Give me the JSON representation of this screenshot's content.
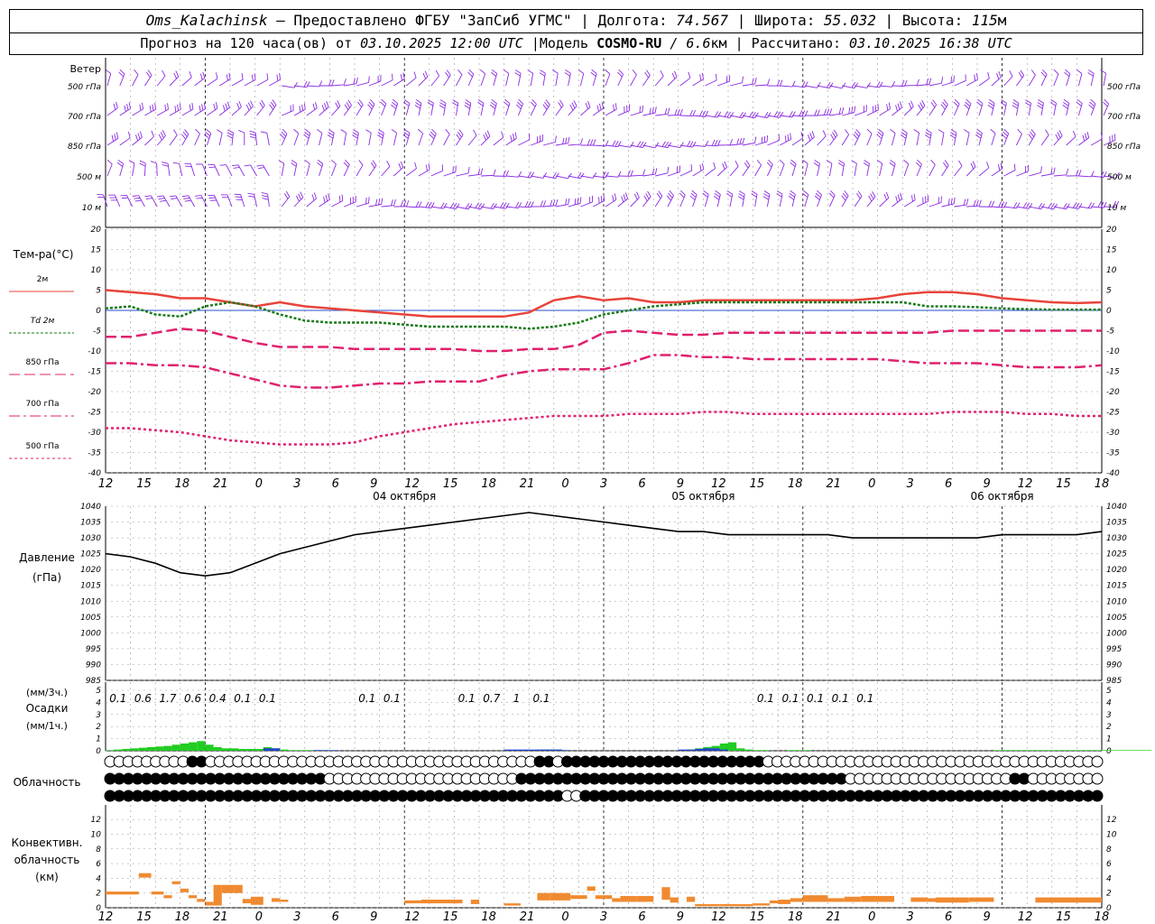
{
  "header": {
    "station": "Oms_Kalachinsk",
    "dash": "–",
    "provider": "Предоставлено ФГБУ \"ЗапСиб УГМС\"",
    "lon_label": "Долгота:",
    "lon_value": "74.567",
    "lat_label": "Широта:",
    "lat_value": "55.032",
    "alt_label": "Высота:",
    "alt_value": "115",
    "alt_unit": "м",
    "forecast_label": "Прогноз на 120 часа(ов) от",
    "forecast_from": "03.10.2025 12:00 UTC",
    "model_label": "Модель",
    "model_name": "COSMO-RU",
    "model_res": "/ 6.6",
    "model_res_unit": "км",
    "calc_label": "Рассчитано:",
    "calc_value": "03.10.2025 16:38 UTC",
    "sep": "|"
  },
  "labels": {
    "wind": "Ветер",
    "wind_levels": [
      "500 гПа",
      "700 гПа",
      "850 гПа",
      "500 м",
      "10  м"
    ],
    "temp_title": "Тем-ра(°C)",
    "temp_series_labels": [
      "2м",
      "Td  2м",
      "850 гПа",
      "700 гПа",
      "500 гПа"
    ],
    "pressure_title": "Давление",
    "pressure_unit": "(гПа)",
    "precip_unit_top": "(мм/3ч.)",
    "precip_title": "Осадки",
    "precip_unit_bottom": "(мм/1ч.)",
    "cloud_title": "Облачность",
    "conv_title_1": "Конвективн.",
    "conv_title_2": "облачность",
    "conv_unit": "(км)",
    "dates": [
      "04 октября",
      "05 октября",
      "06 октября"
    ],
    "hour_ticks": [
      "12",
      "15",
      "18",
      "21",
      "0",
      "3",
      "6",
      "9",
      "12",
      "15",
      "18",
      "21",
      "0",
      "3",
      "6",
      "9",
      "12",
      "15",
      "18",
      "21",
      "0",
      "3",
      "6",
      "9",
      "12",
      "15",
      "18"
    ]
  },
  "colors": {
    "temp_2m": "#e8433a",
    "td_2m": "#1a7a1a",
    "t850": "#e0206e",
    "t700": "#e0206e",
    "t500": "#e0206e",
    "wind": "#8a2be2",
    "pressure": "#000000",
    "precip_rain": "#22cc22",
    "precip_snow": "#2244cc",
    "conv": "#f08a30",
    "zero_line": "#2a4fd0"
  },
  "chart_data": [
    {
      "type": "line",
      "panel": "temperature",
      "x": [
        0,
        3,
        6,
        9,
        12,
        15,
        18,
        21,
        24,
        27,
        30,
        33,
        36,
        39,
        42,
        45,
        48,
        51,
        54,
        57,
        60,
        63,
        66,
        69,
        72,
        75,
        78,
        81,
        84,
        87,
        90,
        93,
        96,
        99,
        102,
        105,
        108,
        111,
        114,
        117,
        120
      ],
      "ylim": [
        -40,
        20
      ],
      "yticks": [
        20,
        15,
        10,
        5,
        0,
        -5,
        -10,
        -15,
        -20,
        -25,
        -30,
        -35,
        -40
      ],
      "series": [
        {
          "name": "2м",
          "values": [
            5,
            4.5,
            4,
            3,
            3,
            2,
            1,
            2,
            1,
            0.5,
            0,
            -0.5,
            -1,
            -1.5,
            -1.5,
            -1.5,
            -1.5,
            -0.5,
            2.5,
            3.5,
            2.5,
            3,
            2,
            2,
            2.5,
            2.5,
            2.5,
            2.5,
            2.5,
            2.5,
            2.5,
            3,
            4,
            4.5,
            4.5,
            4,
            3,
            2.5,
            2,
            1.8,
            2
          ]
        },
        {
          "name": "Td  2м",
          "values": [
            0.5,
            1,
            -1,
            -1.5,
            1,
            2,
            1,
            -1,
            -2.5,
            -3,
            -3,
            -3,
            -3.5,
            -4,
            -4,
            -4,
            -4,
            -4.5,
            -4,
            -3,
            -1,
            0,
            1,
            1.5,
            2,
            2,
            2,
            2,
            2,
            2,
            2,
            2,
            2,
            1,
            1,
            0.8,
            0.5,
            0.3,
            0.2,
            0.2,
            0.2
          ]
        },
        {
          "name": "850 гПа",
          "values": [
            -6.5,
            -6.5,
            -5.5,
            -4.5,
            -5,
            -6.5,
            -8,
            -9,
            -9,
            -9,
            -9.5,
            -9.5,
            -9.5,
            -9.5,
            -9.5,
            -10,
            -10,
            -9.5,
            -9.5,
            -8.5,
            -5.5,
            -5,
            -5.5,
            -6,
            -6,
            -5.5,
            -5.5,
            -5.5,
            -5.5,
            -5.5,
            -5.5,
            -5.5,
            -5.5,
            -5.5,
            -5,
            -5,
            -5,
            -5,
            -5,
            -5,
            -5
          ]
        },
        {
          "name": "700 гПа",
          "values": [
            -13,
            -13,
            -13.5,
            -13.5,
            -14,
            -15.5,
            -17,
            -18.5,
            -19,
            -19,
            -18.5,
            -18,
            -18,
            -17.5,
            -17.5,
            -17.5,
            -16,
            -15,
            -14.5,
            -14.5,
            -14.5,
            -13,
            -11,
            -11,
            -11.5,
            -11.5,
            -12,
            -12,
            -12,
            -12,
            -12,
            -12,
            -12.5,
            -13,
            -13,
            -13,
            -13.5,
            -14,
            -14,
            -14,
            -13.5
          ]
        },
        {
          "name": "500 гПа",
          "values": [
            -29,
            -29,
            -29.5,
            -30,
            -31,
            -32,
            -32.5,
            -33,
            -33,
            -33,
            -32.5,
            -31,
            -30,
            -29,
            -28,
            -27.5,
            -27,
            -26.5,
            -26,
            -26,
            -26,
            -25.5,
            -25.5,
            -25.5,
            -25,
            -25,
            -25.5,
            -25.5,
            -25.5,
            -25.5,
            -25.5,
            -25.5,
            -25.5,
            -25.5,
            -25,
            -25,
            -25,
            -25.5,
            -25.5,
            -26,
            -26
          ]
        }
      ]
    },
    {
      "type": "line",
      "panel": "pressure",
      "x": [
        0,
        3,
        6,
        9,
        12,
        15,
        18,
        21,
        24,
        27,
        30,
        33,
        36,
        39,
        42,
        45,
        48,
        51,
        54,
        57,
        60,
        63,
        66,
        69,
        72,
        75,
        78,
        81,
        84,
        87,
        90,
        93,
        96,
        99,
        102,
        105,
        108,
        111,
        114,
        117,
        120
      ],
      "ylim": [
        985,
        1040
      ],
      "yticks": [
        1040,
        1035,
        1030,
        1025,
        1020,
        1015,
        1010,
        1005,
        1000,
        995,
        990,
        985
      ],
      "series": [
        {
          "name": "Давление",
          "values": [
            1025,
            1024,
            1022,
            1019,
            1018,
            1019,
            1022,
            1025,
            1027,
            1029,
            1031,
            1032,
            1033,
            1034,
            1035,
            1036,
            1037,
            1038,
            1037,
            1036,
            1035,
            1034,
            1033,
            1032,
            1032,
            1031,
            1031,
            1031,
            1031,
            1031,
            1030,
            1030,
            1030,
            1030,
            1030,
            1030,
            1031,
            1031,
            1031,
            1031,
            1032
          ]
        }
      ]
    },
    {
      "type": "bar",
      "panel": "precipitation",
      "ylim": [
        0,
        5
      ],
      "yticks": [
        5,
        4,
        3,
        2,
        1,
        0
      ],
      "labels_3h": [
        {
          "x": 1.5,
          "text": "0.1"
        },
        {
          "x": 4.5,
          "text": "0.6"
        },
        {
          "x": 7.5,
          "text": "1.7"
        },
        {
          "x": 10.5,
          "text": "0.6"
        },
        {
          "x": 13.5,
          "text": "0.4"
        },
        {
          "x": 16.5,
          "text": "0.1"
        },
        {
          "x": 19.5,
          "text": "0.1"
        },
        {
          "x": 31.5,
          "text": "0.1"
        },
        {
          "x": 34.5,
          "text": "0.1"
        },
        {
          "x": 43.5,
          "text": "0.1"
        },
        {
          "x": 46.5,
          "text": "0.7"
        },
        {
          "x": 49.5,
          "text": "1"
        },
        {
          "x": 52.5,
          "text": "0.1"
        },
        {
          "x": 79.5,
          "text": "0.1"
        },
        {
          "x": 82.5,
          "text": "0.1"
        },
        {
          "x": 85.5,
          "text": "0.1"
        },
        {
          "x": 88.5,
          "text": "0.1"
        },
        {
          "x": 91.5,
          "text": "0.1"
        }
      ],
      "rain_1h": [
        0.05,
        0.1,
        0.15,
        0.2,
        0.25,
        0.3,
        0.35,
        0.4,
        0.5,
        0.6,
        0.7,
        0.8,
        0.5,
        0.3,
        0.2,
        0.2,
        0.15,
        0.15,
        0.15,
        0.3,
        0.2,
        0.1,
        0.05,
        0.05,
        0.05,
        0.05,
        0.05,
        0,
        0,
        0,
        0,
        0,
        0,
        0,
        0,
        0,
        0,
        0,
        0,
        0,
        0,
        0,
        0,
        0,
        0,
        0,
        0,
        0,
        0,
        0,
        0.05,
        0.05,
        0.1,
        0.1,
        0.1,
        0.05,
        0,
        0,
        0,
        0,
        0,
        0,
        0,
        0,
        0,
        0,
        0,
        0,
        0,
        0.05,
        0.1,
        0.2,
        0.3,
        0.4,
        0.6,
        0.7,
        0.2,
        0.1,
        0.05,
        0.05,
        0,
        0,
        0.05,
        0.05,
        0.05,
        0,
        0,
        0,
        0,
        0,
        0,
        0,
        0,
        0,
        0,
        0,
        0,
        0,
        0,
        0,
        0,
        0,
        0,
        0,
        0,
        0,
        0,
        0.05,
        0.05,
        0.05,
        0.05,
        0.05,
        0.05,
        0.05,
        0.05,
        0.05,
        0.05,
        0.05,
        0.05,
        0.05,
        0.05,
        0.05,
        0.05,
        0.05,
        0.05,
        0.05
      ],
      "snow_1h": [
        0,
        0,
        0,
        0,
        0,
        0,
        0,
        0,
        0,
        0,
        0,
        0,
        0,
        0,
        0,
        0,
        0,
        0,
        0,
        0.2,
        0.2,
        0,
        0,
        0,
        0,
        0.05,
        0.05,
        0.05,
        0,
        0,
        0,
        0,
        0,
        0,
        0,
        0,
        0,
        0,
        0,
        0,
        0,
        0,
        0,
        0,
        0,
        0,
        0,
        0,
        0.1,
        0.1,
        0.1,
        0.1,
        0.1,
        0.1,
        0.1,
        0.05,
        0,
        0,
        0,
        0,
        0,
        0,
        0,
        0,
        0,
        0,
        0,
        0,
        0,
        0.1,
        0.1,
        0.15,
        0.2,
        0.2,
        0.1,
        0,
        0,
        0,
        0,
        0,
        0,
        0,
        0,
        0,
        0,
        0,
        0,
        0,
        0,
        0,
        0,
        0,
        0,
        0,
        0,
        0,
        0,
        0,
        0,
        0,
        0,
        0,
        0,
        0,
        0,
        0,
        0,
        0,
        0,
        0,
        0,
        0,
        0,
        0,
        0,
        0,
        0,
        0,
        0,
        0,
        0,
        0
      ]
    },
    {
      "type": "bar",
      "panel": "convective_cloud",
      "ylim": [
        0,
        13
      ],
      "yticks": [
        12,
        10,
        8,
        6,
        4,
        2,
        0
      ],
      "bars": [
        {
          "x0": 0,
          "x1": 4,
          "bottom": 1.8,
          "top": 2.2
        },
        {
          "x0": 4,
          "x1": 5.5,
          "bottom": 4.1,
          "top": 4.7
        },
        {
          "x0": 5.5,
          "x1": 7,
          "bottom": 1.8,
          "top": 2.2
        },
        {
          "x0": 7,
          "x1": 8,
          "bottom": 1.3,
          "top": 1.7
        },
        {
          "x0": 8,
          "x1": 9,
          "bottom": 3.2,
          "top": 3.6
        },
        {
          "x0": 9,
          "x1": 10,
          "bottom": 2.1,
          "top": 2.6
        },
        {
          "x0": 10,
          "x1": 11,
          "bottom": 1.3,
          "top": 1.7
        },
        {
          "x0": 11,
          "x1": 12,
          "bottom": 0.8,
          "top": 1.2
        },
        {
          "x0": 12,
          "x1": 13,
          "bottom": 0.3,
          "top": 0.8
        },
        {
          "x0": 13,
          "x1": 14,
          "bottom": 0.3,
          "top": 3.1
        },
        {
          "x0": 14,
          "x1": 15.5,
          "bottom": 2,
          "top": 3.1
        },
        {
          "x0": 15.5,
          "x1": 16.5,
          "bottom": 2,
          "top": 3.1
        },
        {
          "x0": 16.5,
          "x1": 17.5,
          "bottom": 0.6,
          "top": 1.2
        },
        {
          "x0": 17.5,
          "x1": 19,
          "bottom": 0.4,
          "top": 1.5
        },
        {
          "x0": 20,
          "x1": 21,
          "bottom": 0.8,
          "top": 1.3
        },
        {
          "x0": 21,
          "x1": 22,
          "bottom": 0.8,
          "top": 1.1
        },
        {
          "x0": 36,
          "x1": 38,
          "bottom": 0.6,
          "top": 1
        },
        {
          "x0": 38,
          "x1": 43,
          "bottom": 0.6,
          "top": 1.1
        },
        {
          "x0": 44,
          "x1": 45,
          "bottom": 0.5,
          "top": 1.1
        },
        {
          "x0": 48,
          "x1": 50,
          "bottom": 0.3,
          "top": 0.6
        },
        {
          "x0": 52,
          "x1": 53.5,
          "bottom": 1,
          "top": 2
        },
        {
          "x0": 53.5,
          "x1": 56,
          "bottom": 1,
          "top": 2
        },
        {
          "x0": 56,
          "x1": 58,
          "bottom": 1.2,
          "top": 1.7
        },
        {
          "x0": 58,
          "x1": 59,
          "bottom": 2.3,
          "top": 2.9
        },
        {
          "x0": 59,
          "x1": 61,
          "bottom": 1.2,
          "top": 1.7
        },
        {
          "x0": 61,
          "x1": 62,
          "bottom": 0.8,
          "top": 1.3
        },
        {
          "x0": 62,
          "x1": 64,
          "bottom": 0.8,
          "top": 1.6
        },
        {
          "x0": 64,
          "x1": 66,
          "bottom": 0.8,
          "top": 1.6
        },
        {
          "x0": 67,
          "x1": 68,
          "bottom": 1.1,
          "top": 2.8
        },
        {
          "x0": 68,
          "x1": 69,
          "bottom": 0.7,
          "top": 1.4
        },
        {
          "x0": 70,
          "x1": 71,
          "bottom": 0.8,
          "top": 1.5
        },
        {
          "x0": 71,
          "x1": 74,
          "bottom": 0.2,
          "top": 0.5
        },
        {
          "x0": 74,
          "x1": 78,
          "bottom": 0.2,
          "top": 0.5
        },
        {
          "x0": 78,
          "x1": 80,
          "bottom": 0.3,
          "top": 0.6
        },
        {
          "x0": 80,
          "x1": 81,
          "bottom": 0.6,
          "top": 1
        },
        {
          "x0": 81,
          "x1": 82.5,
          "bottom": 0.5,
          "top": 1.1
        },
        {
          "x0": 82.5,
          "x1": 84,
          "bottom": 0.8,
          "top": 1.3
        },
        {
          "x0": 84,
          "x1": 87,
          "bottom": 0.8,
          "top": 1.7
        },
        {
          "x0": 87,
          "x1": 89,
          "bottom": 0.8,
          "top": 1.3
        },
        {
          "x0": 89,
          "x1": 91,
          "bottom": 0.8,
          "top": 1.5
        },
        {
          "x0": 91,
          "x1": 95,
          "bottom": 0.8,
          "top": 1.6
        },
        {
          "x0": 97,
          "x1": 99,
          "bottom": 0.8,
          "top": 1.4
        },
        {
          "x0": 99,
          "x1": 100,
          "bottom": 0.8,
          "top": 1.3
        },
        {
          "x0": 100,
          "x1": 104,
          "bottom": 0.7,
          "top": 1.4
        },
        {
          "x0": 104,
          "x1": 107,
          "bottom": 0.8,
          "top": 1.4
        },
        {
          "x0": 112,
          "x1": 120,
          "bottom": 0.7,
          "top": 1.4
        }
      ]
    }
  ],
  "cloud_rows": {
    "row1": "0000000001100000000000000000000000000000000000011011111111111111111111110000000000000000000000000000000000000",
    "row2": "1111111111111111111111110000000000000000000001111111111111111111111111111111111110000000000000000001100000000",
    "row3": "1111111111111111111111111111111111111111111111111100111111111111111111111111111111111111111111111111111111111"
  }
}
